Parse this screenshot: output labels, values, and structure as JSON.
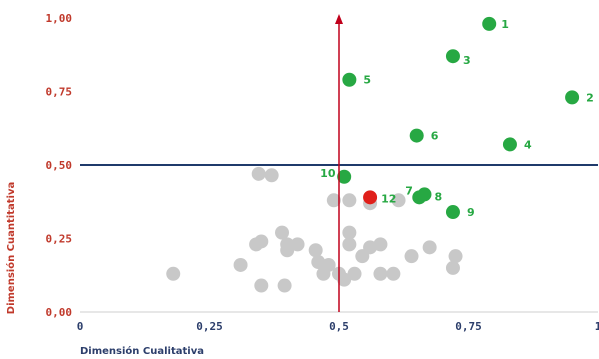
{
  "chart_data": {
    "type": "scatter",
    "xlabel": "Dimensión Cualitativa",
    "ylabel": "Dimensión Cuantitativa",
    "xlim": [
      0,
      1
    ],
    "ylim": [
      0,
      1
    ],
    "x_ticks": [
      "0",
      "0,25",
      "0,5",
      "0,75",
      "1"
    ],
    "y_ticks": [
      "0,00",
      "0,25",
      "0,50",
      "0,75",
      "1,00"
    ],
    "reference_lines": {
      "vertical_x": 0.5,
      "horizontal_y": 0.5
    },
    "colors": {
      "highlighted": "#27a843",
      "selected": "#e0201b",
      "other": "#c8c8c8",
      "vertical_line": "#c0001b",
      "horizontal_line": "#1f3a6b",
      "y_axis_text": "#c0392b",
      "x_axis_text": "#2c3e6b"
    },
    "labeled_points": [
      {
        "label": "1",
        "x": 0.79,
        "y": 0.98,
        "color": "green"
      },
      {
        "label": "2",
        "x": 0.95,
        "y": 0.73,
        "color": "green"
      },
      {
        "label": "3",
        "x": 0.72,
        "y": 0.87,
        "color": "green"
      },
      {
        "label": "4",
        "x": 0.83,
        "y": 0.57,
        "color": "green"
      },
      {
        "label": "5",
        "x": 0.52,
        "y": 0.79,
        "color": "green"
      },
      {
        "label": "6",
        "x": 0.65,
        "y": 0.6,
        "color": "green"
      },
      {
        "label": "7",
        "x": 0.655,
        "y": 0.39,
        "color": "green"
      },
      {
        "label": "8",
        "x": 0.665,
        "y": 0.4,
        "color": "green"
      },
      {
        "label": "9",
        "x": 0.72,
        "y": 0.34,
        "color": "green"
      },
      {
        "label": "10",
        "x": 0.51,
        "y": 0.46,
        "color": "green"
      },
      {
        "label": "12",
        "x": 0.56,
        "y": 0.39,
        "color": "red"
      }
    ],
    "other_points": [
      {
        "x": 0.18,
        "y": 0.13
      },
      {
        "x": 0.31,
        "y": 0.16
      },
      {
        "x": 0.34,
        "y": 0.23
      },
      {
        "x": 0.35,
        "y": 0.24
      },
      {
        "x": 0.345,
        "y": 0.47
      },
      {
        "x": 0.37,
        "y": 0.465
      },
      {
        "x": 0.35,
        "y": 0.09
      },
      {
        "x": 0.395,
        "y": 0.09
      },
      {
        "x": 0.39,
        "y": 0.27
      },
      {
        "x": 0.4,
        "y": 0.23
      },
      {
        "x": 0.4,
        "y": 0.21
      },
      {
        "x": 0.42,
        "y": 0.23
      },
      {
        "x": 0.455,
        "y": 0.21
      },
      {
        "x": 0.46,
        "y": 0.17
      },
      {
        "x": 0.47,
        "y": 0.13
      },
      {
        "x": 0.48,
        "y": 0.16
      },
      {
        "x": 0.5,
        "y": 0.13
      },
      {
        "x": 0.51,
        "y": 0.11
      },
      {
        "x": 0.52,
        "y": 0.27
      },
      {
        "x": 0.52,
        "y": 0.23
      },
      {
        "x": 0.53,
        "y": 0.13
      },
      {
        "x": 0.49,
        "y": 0.38
      },
      {
        "x": 0.52,
        "y": 0.38
      },
      {
        "x": 0.56,
        "y": 0.37
      },
      {
        "x": 0.545,
        "y": 0.19
      },
      {
        "x": 0.56,
        "y": 0.22
      },
      {
        "x": 0.58,
        "y": 0.23
      },
      {
        "x": 0.58,
        "y": 0.13
      },
      {
        "x": 0.605,
        "y": 0.13
      },
      {
        "x": 0.64,
        "y": 0.19
      },
      {
        "x": 0.615,
        "y": 0.38
      },
      {
        "x": 0.675,
        "y": 0.22
      },
      {
        "x": 0.72,
        "y": 0.15
      },
      {
        "x": 0.725,
        "y": 0.19
      }
    ]
  }
}
